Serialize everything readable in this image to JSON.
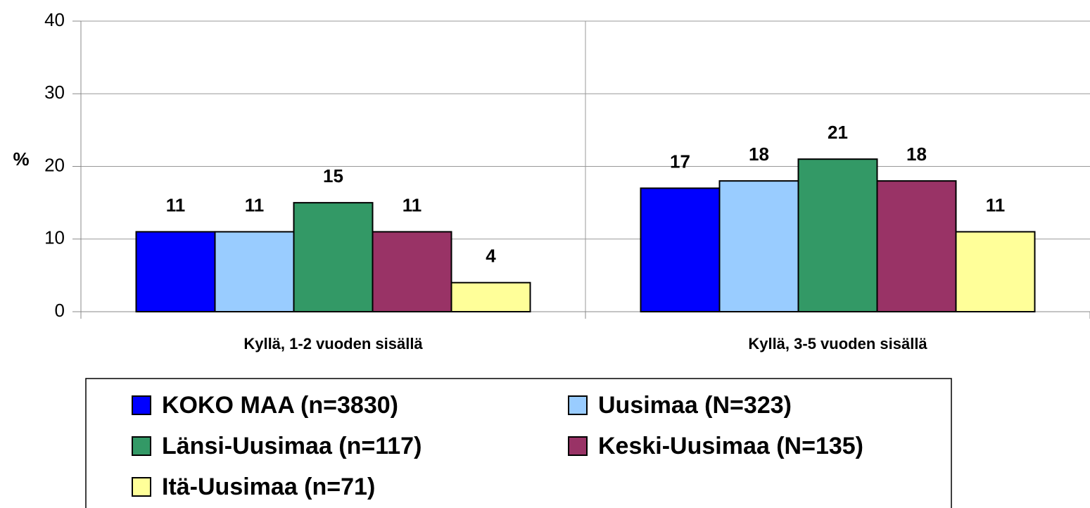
{
  "chart_data": {
    "type": "bar",
    "y_label": "%",
    "categories": [
      "Kyllä, 1-2 vuoden sisällä",
      "Kyllä, 3-5 vuoden sisällä"
    ],
    "series": [
      {
        "name": "KOKO MAA (n=3830)",
        "color": "#0000ff",
        "values": [
          11,
          17
        ]
      },
      {
        "name": "Uusimaa (N=323)",
        "color": "#99ccff",
        "values": [
          11,
          18
        ]
      },
      {
        "name": "Länsi-Uusimaa (n=117)",
        "color": "#339966",
        "values": [
          15,
          21
        ]
      },
      {
        "name": "Keski-Uusimaa (N=135)",
        "color": "#993366",
        "values": [
          11,
          18
        ]
      },
      {
        "name": "Itä-Uusimaa (n=71)",
        "color": "#ffff99",
        "values": [
          4,
          11
        ]
      }
    ],
    "ylim": [
      0,
      40
    ],
    "yticks": [
      0,
      10,
      20,
      30,
      40
    ],
    "grid": true,
    "legend": "bottom"
  }
}
